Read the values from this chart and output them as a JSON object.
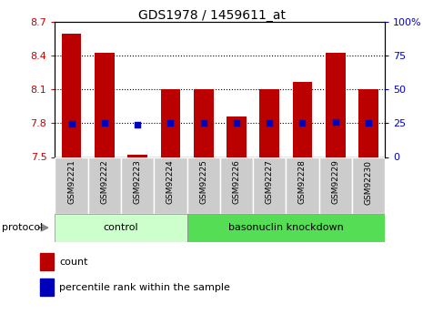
{
  "title": "GDS1978 / 1459611_at",
  "samples": [
    "GSM92221",
    "GSM92222",
    "GSM92223",
    "GSM92224",
    "GSM92225",
    "GSM92226",
    "GSM92227",
    "GSM92228",
    "GSM92229",
    "GSM92230"
  ],
  "count_values": [
    8.6,
    8.43,
    7.52,
    8.1,
    8.1,
    7.86,
    8.1,
    8.17,
    8.43,
    8.1
  ],
  "percentile_values": [
    7.795,
    7.8,
    7.785,
    7.8,
    7.8,
    7.8,
    7.8,
    7.8,
    7.815,
    7.8
  ],
  "ylim_left": [
    7.5,
    8.7
  ],
  "ylim_right": [
    0,
    100
  ],
  "yticks_left": [
    7.5,
    7.8,
    8.1,
    8.4,
    8.7
  ],
  "yticks_right": [
    0,
    25,
    50,
    75,
    100
  ],
  "ytick_labels_right": [
    "0",
    "25",
    "50",
    "75",
    "100%"
  ],
  "bar_color": "#bb0000",
  "dot_color": "#0000bb",
  "bar_width": 0.6,
  "ctrl_count": 4,
  "kd_count": 6,
  "group_labels": [
    "control",
    "basonuclin knockdown"
  ],
  "group_colors": [
    "#ccffcc",
    "#55dd55"
  ],
  "protocol_label": "protocol",
  "legend_count_label": "count",
  "legend_percentile_label": "percentile rank within the sample",
  "grid_color": "black",
  "grid_linestyle": ":",
  "tick_label_color_left": "#cc0000",
  "tick_label_color_right": "#0000cc",
  "sample_box_color": "#cccccc",
  "plot_bg": "#ffffff",
  "fig_bg": "#ffffff"
}
